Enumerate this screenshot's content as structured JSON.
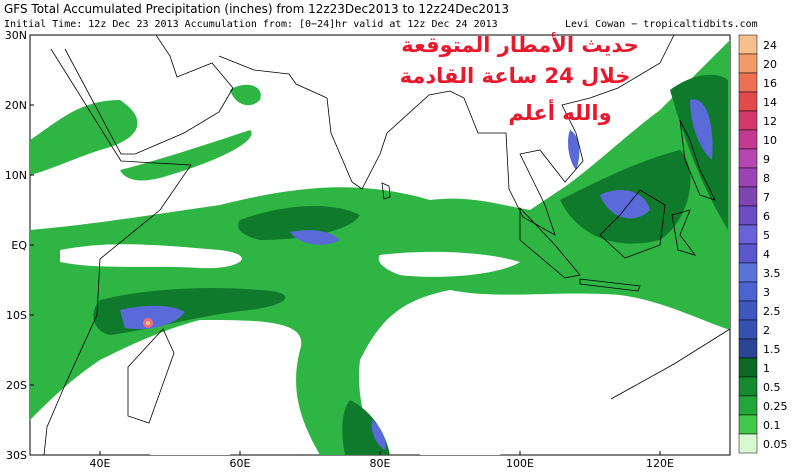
{
  "header": {
    "title": "GFS Total Accumulated Precipitation (inches) from 12z23Dec2013 to 12z24Dec2013",
    "subtitle": "Initial Time: 12z Dec 23 2013  Accumulation from: [0−24]hr valid at 12z Dec 24 2013",
    "credit": "Levi Cowan − tropicaltidbits.com"
  },
  "annotation": {
    "lines": [
      "حديث الأمطار المتوقعة",
      "خلال 24 ساعة القادمة",
      "والله أعلم"
    ],
    "color": "#e8192c"
  },
  "map": {
    "lat_labels": [
      "30N",
      "20N",
      "10N",
      "EQ",
      "10S",
      "20S",
      "30S"
    ],
    "lon_labels": [
      "40E",
      "60E",
      "80E",
      "100E",
      "120E"
    ]
  },
  "legend": {
    "labels": [
      "24",
      "20",
      "16",
      "14",
      "12",
      "10",
      "9",
      "8",
      "7",
      "6",
      "5",
      "4",
      "3.5",
      "3",
      "2.5",
      "2",
      "1.5",
      "1",
      "0.5",
      "0.25",
      "0.1",
      "0.05"
    ],
    "colors": [
      "#f6c08e",
      "#f39a6a",
      "#ee7054",
      "#e24a4c",
      "#d23a6c",
      "#c43a92",
      "#b448b0",
      "#9a44b4",
      "#7e46b0",
      "#6a4ec4",
      "#6a62d8",
      "#5a56cc",
      "#5a74dc",
      "#4c64d0",
      "#3f58c0",
      "#3550ae",
      "#2b4696",
      "#0c6a26",
      "#168a30",
      "#22a63a",
      "#42c84a",
      "#d8f8d0"
    ]
  }
}
